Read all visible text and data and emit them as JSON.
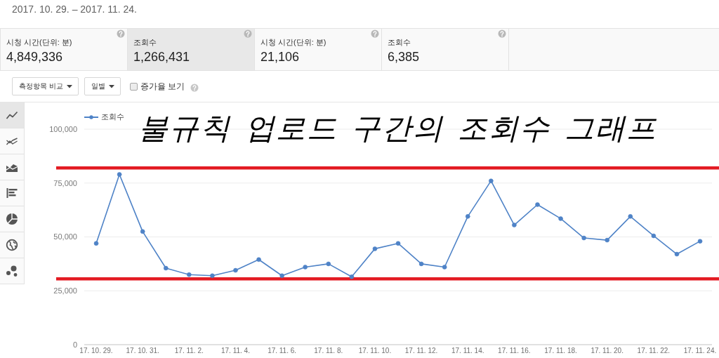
{
  "chart_data": [
    {
      "type": "other",
      "title": "2017. 10. 29. – 2017. 11. 24.",
      "categories": [
        "시청 시간(단위: 분)",
        "조회수",
        "시청 시간(단위: 분)",
        "조회수"
      ],
      "value_labels": [
        "4,849,336",
        "1,266,431",
        "21,106",
        "6,385"
      ]
    },
    {
      "type": "line",
      "title": "불규칙 업로드 구간의 조회수 그래프",
      "annotations": [
        "측정항목 비교",
        "일별",
        "증가율 보기"
      ],
      "categories": [
        "17. 10. 29.",
        null,
        "17. 10. 31.",
        null,
        "17. 11. 2.",
        null,
        "17. 11. 4.",
        null,
        "17. 11. 6.",
        null,
        "17. 11. 8.",
        null,
        "17. 11. 10.",
        null,
        "17. 11. 12.",
        null,
        "17. 11. 14.",
        null,
        "17. 11. 16.",
        null,
        "17. 11. 18.",
        null,
        "17. 11. 20.",
        null,
        "17. 11. 22.",
        null,
        "17. 11. 24."
      ],
      "series": [
        {
          "name": "조회수",
          "color": "#4f83c7",
          "values": [
            47000,
            79000,
            52500,
            35500,
            32500,
            32000,
            34500,
            39500,
            32000,
            36000,
            37500,
            31500,
            44500,
            47000,
            37500,
            36000,
            59500,
            76000,
            55500,
            65000,
            58500,
            49500,
            48500,
            59500,
            50500,
            42000,
            48000
          ]
        }
      ],
      "ylim": [
        0,
        100000
      ],
      "yticks": [
        0,
        {
          "value": 25000,
          "label": "25,000"
        },
        {
          "value": 50000,
          "label": "50,000"
        },
        {
          "value": 75000,
          "label": "75,000"
        },
        {
          "value": 100000,
          "label": "100,000"
        }
      ],
      "grid": "y",
      "legend": "top left",
      "marker": "circle",
      "ref_lines": [
        {
          "axis": "y",
          "value": 82000,
          "color": "#e31b23"
        },
        {
          "axis": "y",
          "value": 30500,
          "color": "#e31b23"
        }
      ]
    }
  ]
}
